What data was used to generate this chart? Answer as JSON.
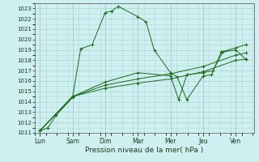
{
  "background_color": "#cff0f0",
  "grid_color": "#b0d8d8",
  "line_color": "#1a6b1a",
  "xlabel": "Pression niveau de la mer( hPa )",
  "ylim": [
    1011,
    1023.5
  ],
  "yticks": [
    1011,
    1012,
    1013,
    1014,
    1015,
    1016,
    1017,
    1018,
    1019,
    1020,
    1021,
    1022,
    1023
  ],
  "x_labels": [
    "Lun",
    "Sam",
    "Dim",
    "Mar",
    "Mer",
    "Jeu",
    "Ven"
  ],
  "x_positions": [
    0,
    1,
    2,
    3,
    4,
    5,
    6
  ],
  "series": [
    {
      "x": [
        0.0,
        0.25,
        0.5,
        1.0,
        1.25,
        1.6,
        2.0,
        2.2,
        2.4,
        3.0,
        3.25,
        3.5,
        4.0,
        4.2,
        4.5,
        5.0,
        5.25,
        5.55,
        6.0,
        6.3
      ],
      "y": [
        1011.2,
        1011.5,
        1012.7,
        1014.4,
        1019.1,
        1019.5,
        1022.6,
        1022.75,
        1023.2,
        1022.2,
        1021.7,
        1019.0,
        1016.8,
        1016.4,
        1014.2,
        1016.5,
        1016.6,
        1018.8,
        1019.2,
        1019.5
      ]
    },
    {
      "x": [
        0.0,
        1.0,
        2.0,
        3.0,
        4.0,
        5.0,
        6.0,
        6.3
      ],
      "y": [
        1011.2,
        1014.5,
        1015.3,
        1015.8,
        1016.2,
        1016.9,
        1018.0,
        1018.1
      ]
    },
    {
      "x": [
        0.0,
        1.0,
        2.0,
        3.0,
        4.0,
        5.0,
        6.0,
        6.3
      ],
      "y": [
        1011.2,
        1014.5,
        1015.6,
        1016.2,
        1016.7,
        1017.4,
        1018.5,
        1018.7
      ]
    },
    {
      "x": [
        0.0,
        1.0,
        2.0,
        3.0,
        4.0,
        4.25,
        4.5,
        5.0,
        5.3,
        5.6,
        6.0,
        6.3
      ],
      "y": [
        1011.2,
        1014.5,
        1015.9,
        1016.8,
        1016.5,
        1014.2,
        1016.6,
        1016.8,
        1017.0,
        1018.8,
        1019.0,
        1018.1
      ]
    }
  ]
}
